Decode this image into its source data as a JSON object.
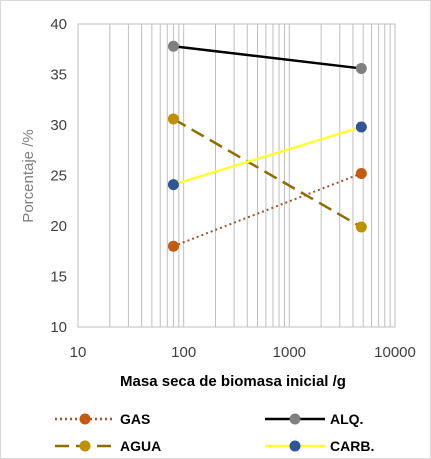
{
  "chart_data": {
    "type": "scatter",
    "x_scale": "log",
    "xlim": [
      10,
      10000
    ],
    "ylim": [
      10,
      40
    ],
    "x_ticks": [
      "10",
      "100",
      "1000",
      "10000"
    ],
    "y_ticks": [
      "10",
      "15",
      "20",
      "25",
      "30",
      "35",
      "40"
    ],
    "xlabel": "Masa seca de biomasa inicial /g",
    "ylabel": "Porcentaje /%",
    "grid": "vertical log gridlines",
    "legend_position": "bottom",
    "series": [
      {
        "name": "GAS",
        "x": [
          80,
          4800
        ],
        "y": [
          18.0,
          25.2
        ],
        "color": "#c55a11",
        "line_color": "#a0522d",
        "line_style": "dotted"
      },
      {
        "name": "ALQ.",
        "x": [
          80,
          4800
        ],
        "y": [
          37.8,
          35.6
        ],
        "color": "#808080",
        "line_color": "#000000",
        "line_style": "solid"
      },
      {
        "name": "AGUA",
        "x": [
          80,
          4800
        ],
        "y": [
          30.6,
          19.9
        ],
        "color": "#bf9000",
        "line_color": "#8c6d00",
        "line_style": "dashed"
      },
      {
        "name": "CARB.",
        "x": [
          80,
          4800
        ],
        "y": [
          24.1,
          29.8
        ],
        "color": "#2f5597",
        "line_color": "#ffff33",
        "line_style": "solid"
      }
    ]
  }
}
